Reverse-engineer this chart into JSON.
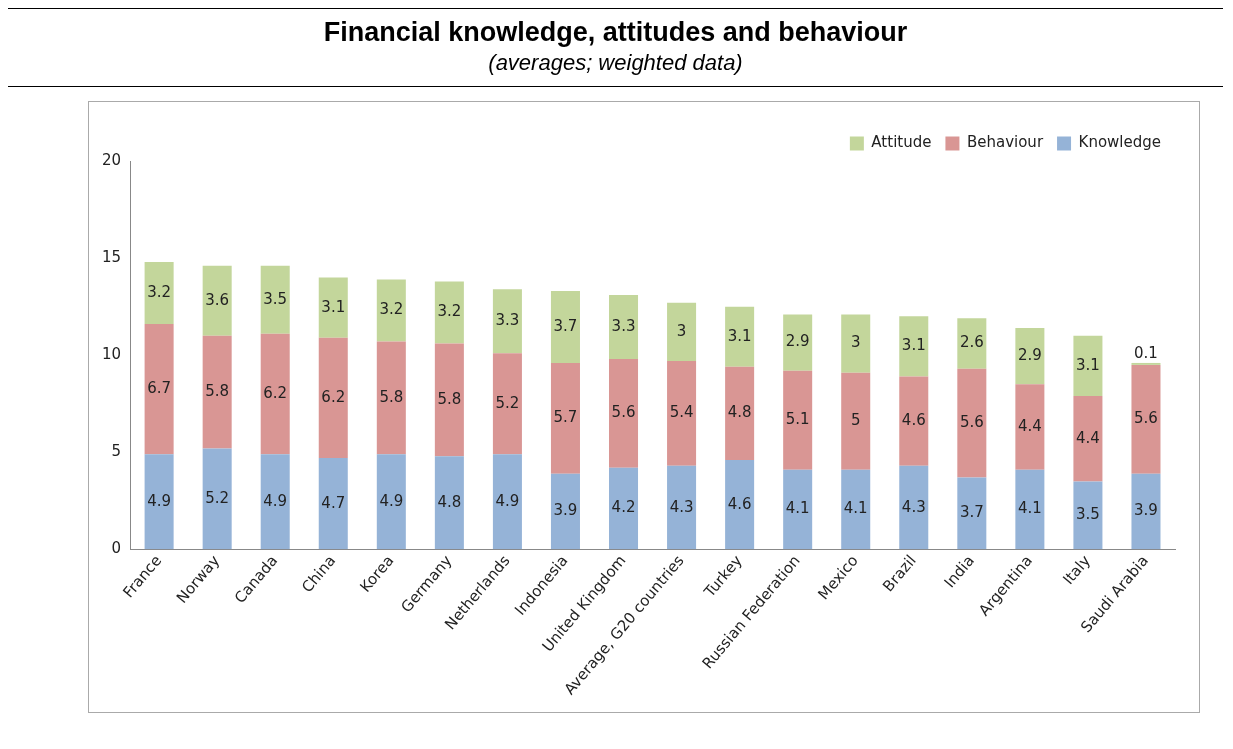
{
  "chart_data": {
    "type": "bar",
    "title": "Financial knowledge, attitudes and behaviour",
    "subtitle": "(averages; weighted data)",
    "categories": [
      "France",
      "Norway",
      "Canada",
      "China",
      "Korea",
      "Germany",
      "Netherlands",
      "Indonesia",
      "United Kingdom",
      "Average, G20 countries",
      "Turkey",
      "Russian Federation",
      "Mexico",
      "Brazil",
      "India",
      "Argentina",
      "Italy",
      "Saudi Arabia"
    ],
    "stacked": true,
    "data_labels": true,
    "legend": "top right",
    "grid": false,
    "ylim": [
      0,
      20
    ],
    "yticks": [
      0,
      5,
      10,
      15,
      20
    ],
    "series": [
      {
        "name": "Knowledge",
        "color": "#95b3d7",
        "values": [
          4.9,
          5.2,
          4.9,
          4.7,
          4.9,
          4.8,
          4.9,
          3.9,
          4.2,
          4.3,
          4.6,
          4.1,
          4.1,
          4.3,
          3.7,
          4.1,
          3.5,
          3.9
        ]
      },
      {
        "name": "Behaviour",
        "color": "#d99694",
        "values": [
          6.7,
          5.8,
          6.2,
          6.2,
          5.8,
          5.8,
          5.2,
          5.7,
          5.6,
          5.4,
          4.8,
          5.1,
          5,
          4.6,
          5.6,
          4.4,
          4.4,
          5.6
        ]
      },
      {
        "name": "Attitude",
        "color": "#c3d69b",
        "values": [
          3.2,
          3.6,
          3.5,
          3.1,
          3.2,
          3.2,
          3.3,
          3.7,
          3.3,
          3,
          3.1,
          2.9,
          3,
          3.1,
          2.6,
          2.9,
          3.1,
          0.1
        ]
      }
    ]
  }
}
